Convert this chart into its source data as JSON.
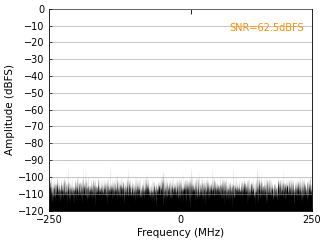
{
  "title": "",
  "xlabel": "Frequency (MHz)",
  "ylabel": "Amplitude (dBFS)",
  "xlim": [
    -250,
    250
  ],
  "ylim": [
    -120,
    0
  ],
  "yticks": [
    0,
    -10,
    -20,
    -30,
    -40,
    -50,
    -60,
    -70,
    -80,
    -90,
    -100,
    -110,
    -120
  ],
  "xticks": [
    -250,
    0,
    250
  ],
  "noise_floor": -107,
  "noise_std": 3.5,
  "signal_freq": 20,
  "signal_amplitude": -3,
  "snr_text": "SNR=62.5dBFS",
  "snr_text_color_main": "#FF8C00",
  "snr_text_color_label": "#0070C0",
  "snr_x": 0.97,
  "snr_y": 0.93,
  "line_color": "#000000",
  "spurious_freqs": [
    -215,
    -135,
    -100,
    20,
    60,
    100,
    145,
    195
  ],
  "spurious_amplitudes": [
    -93,
    -92,
    -94,
    -93,
    -94,
    -93,
    -94,
    -95
  ],
  "spur2_freqs": [
    -180,
    -65,
    35,
    80
  ],
  "spur2_amplitudes": [
    -97,
    -97,
    -97,
    -97
  ],
  "background_color": "#ffffff",
  "grid_color": "#808080"
}
